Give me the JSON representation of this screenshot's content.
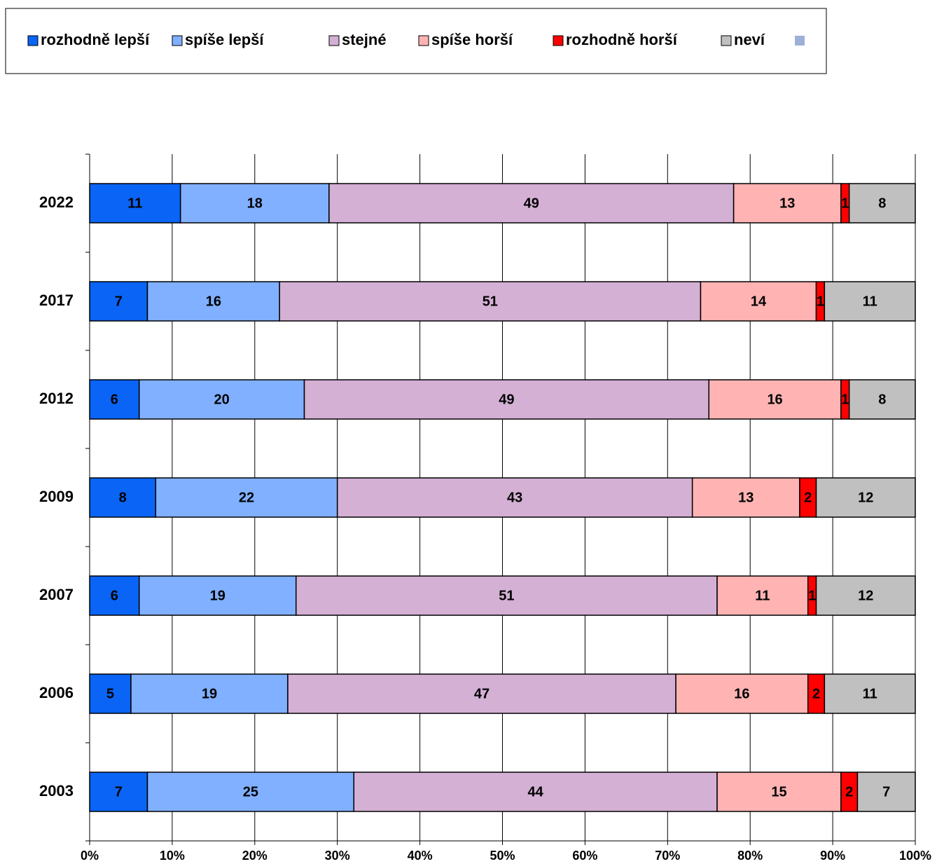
{
  "chart_data": {
    "type": "stacked-bar-horizontal",
    "categories": [
      "2022",
      "2017",
      "2012",
      "2009",
      "2007",
      "2006",
      "2003"
    ],
    "series": [
      {
        "name": "rozhodně lepší",
        "color": "#0a64f5",
        "values": [
          11,
          7,
          6,
          8,
          6,
          5,
          7
        ]
      },
      {
        "name": "spíše lepší",
        "color": "#80b0ff",
        "values": [
          18,
          16,
          20,
          22,
          19,
          19,
          25
        ]
      },
      {
        "name": "stejné",
        "color": "#d4b0d4",
        "values": [
          49,
          51,
          49,
          43,
          51,
          47,
          44
        ]
      },
      {
        "name": "spíše horší",
        "color": "#ffb3b3",
        "values": [
          13,
          14,
          16,
          13,
          11,
          16,
          15
        ]
      },
      {
        "name": "rozhodně horší",
        "color": "#ff0000",
        "values": [
          1,
          1,
          1,
          2,
          1,
          2,
          2
        ]
      },
      {
        "name": "neví",
        "color": "#c0c0c0",
        "values": [
          8,
          11,
          8,
          12,
          12,
          11,
          7
        ]
      }
    ],
    "xlim": [
      0,
      100
    ],
    "xticks": [
      {
        "value": 0,
        "label": "0%"
      },
      {
        "value": 10,
        "label": "10%"
      },
      {
        "value": 20,
        "label": "20%"
      },
      {
        "value": 30,
        "label": "30%"
      },
      {
        "value": 40,
        "label": "40%"
      },
      {
        "value": 50,
        "label": "50%"
      },
      {
        "value": 60,
        "label": "60%"
      },
      {
        "value": 70,
        "label": "70%"
      },
      {
        "value": 80,
        "label": "80%"
      },
      {
        "value": 90,
        "label": "90%"
      },
      {
        "value": 100,
        "label": "100%"
      }
    ],
    "grid": true,
    "legend": "top"
  }
}
